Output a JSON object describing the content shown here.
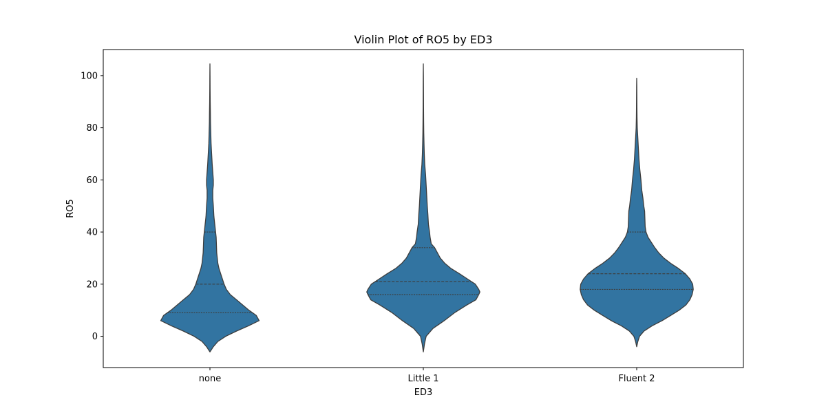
{
  "chart_data": {
    "type": "violin",
    "title": "Violin Plot of RO5 by ED3",
    "xlabel": "ED3",
    "ylabel": "RO5",
    "categories": [
      "none",
      "Little 1",
      "Fluent 2"
    ],
    "yticks": [
      0,
      20,
      40,
      60,
      80,
      100
    ],
    "ylim": [
      -12,
      110
    ],
    "grid": false,
    "legend": "none",
    "colors": {
      "fill": "#3274a1",
      "edge": "#3d3d3d",
      "quartile_line": "#3d3d3d"
    },
    "series": [
      {
        "category": "none",
        "quartiles": [
          9,
          20,
          40
        ],
        "density": [
          [
            -6,
            0.0
          ],
          [
            -4,
            0.06
          ],
          [
            -2,
            0.14
          ],
          [
            0,
            0.28
          ],
          [
            2,
            0.47
          ],
          [
            4,
            0.68
          ],
          [
            6,
            0.87
          ],
          [
            8,
            0.82
          ],
          [
            10,
            0.69
          ],
          [
            12,
            0.58
          ],
          [
            14,
            0.47
          ],
          [
            16,
            0.36
          ],
          [
            18,
            0.29
          ],
          [
            20,
            0.25
          ],
          [
            22,
            0.22
          ],
          [
            24,
            0.19
          ],
          [
            26,
            0.16
          ],
          [
            28,
            0.14
          ],
          [
            30,
            0.13
          ],
          [
            32,
            0.12
          ],
          [
            35,
            0.115
          ],
          [
            38,
            0.11
          ],
          [
            40,
            0.1
          ],
          [
            43,
            0.085
          ],
          [
            46,
            0.07
          ],
          [
            50,
            0.06
          ],
          [
            53,
            0.05
          ],
          [
            56,
            0.05
          ],
          [
            58,
            0.06
          ],
          [
            60,
            0.06
          ],
          [
            63,
            0.05
          ],
          [
            66,
            0.04
          ],
          [
            70,
            0.03
          ],
          [
            74,
            0.02
          ],
          [
            78,
            0.015
          ],
          [
            82,
            0.01
          ],
          [
            86,
            0.008
          ],
          [
            90,
            0.005
          ],
          [
            95,
            0.003
          ],
          [
            100,
            0.002
          ],
          [
            104.5,
            0.0
          ]
        ]
      },
      {
        "category": "Little 1",
        "quartiles": [
          16,
          21,
          34
        ],
        "density": [
          [
            -6,
            0.0
          ],
          [
            -3,
            0.02
          ],
          [
            0,
            0.05
          ],
          [
            3,
            0.17
          ],
          [
            6,
            0.37
          ],
          [
            9,
            0.55
          ],
          [
            12,
            0.77
          ],
          [
            14,
            0.93
          ],
          [
            16,
            0.98
          ],
          [
            17,
            1.0
          ],
          [
            18,
            0.98
          ],
          [
            20,
            0.92
          ],
          [
            22,
            0.78
          ],
          [
            24,
            0.64
          ],
          [
            26,
            0.49
          ],
          [
            28,
            0.38
          ],
          [
            30,
            0.3
          ],
          [
            32,
            0.25
          ],
          [
            34,
            0.2
          ],
          [
            35.5,
            0.14
          ],
          [
            38,
            0.12
          ],
          [
            40,
            0.11
          ],
          [
            43,
            0.09
          ],
          [
            47,
            0.08
          ],
          [
            50,
            0.07
          ],
          [
            54,
            0.06
          ],
          [
            58,
            0.05
          ],
          [
            62,
            0.04
          ],
          [
            66,
            0.025
          ],
          [
            70,
            0.017
          ],
          [
            74,
            0.012
          ],
          [
            78,
            0.008
          ],
          [
            82,
            0.006
          ],
          [
            88,
            0.004
          ],
          [
            94,
            0.003
          ],
          [
            100,
            0.002
          ],
          [
            104.5,
            0.0
          ]
        ]
      },
      {
        "category": "Fluent 2",
        "quartiles": [
          18,
          24,
          40
        ],
        "density": [
          [
            -4,
            0.0
          ],
          [
            -2,
            0.02
          ],
          [
            0,
            0.05
          ],
          [
            2,
            0.13
          ],
          [
            4,
            0.27
          ],
          [
            6,
            0.45
          ],
          [
            8,
            0.6
          ],
          [
            10,
            0.75
          ],
          [
            12,
            0.87
          ],
          [
            14,
            0.94
          ],
          [
            16,
            0.98
          ],
          [
            18,
            1.0
          ],
          [
            20,
            0.99
          ],
          [
            22,
            0.94
          ],
          [
            24,
            0.86
          ],
          [
            26,
            0.74
          ],
          [
            28,
            0.6
          ],
          [
            30,
            0.48
          ],
          [
            32,
            0.39
          ],
          [
            34,
            0.32
          ],
          [
            36,
            0.26
          ],
          [
            38,
            0.2
          ],
          [
            40,
            0.165
          ],
          [
            42,
            0.15
          ],
          [
            45,
            0.145
          ],
          [
            48,
            0.14
          ],
          [
            50,
            0.125
          ],
          [
            53,
            0.11
          ],
          [
            56,
            0.09
          ],
          [
            60,
            0.075
          ],
          [
            64,
            0.055
          ],
          [
            68,
            0.04
          ],
          [
            72,
            0.03
          ],
          [
            76,
            0.02
          ],
          [
            80,
            0.01
          ],
          [
            84,
            0.006
          ],
          [
            88,
            0.004
          ],
          [
            92,
            0.003
          ],
          [
            96,
            0.002
          ],
          [
            99,
            0.0
          ]
        ]
      }
    ]
  }
}
